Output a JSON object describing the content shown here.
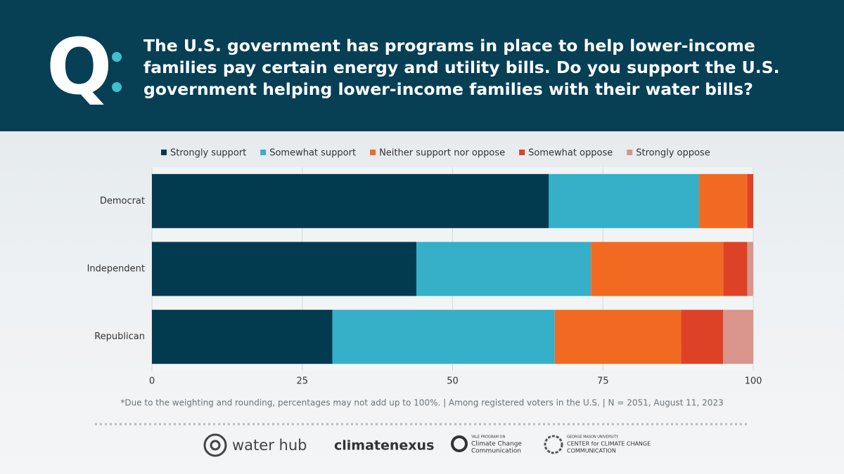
{
  "q_mark": "Q",
  "logos": [
    "water hub",
    "climatenexus",
    "YALE PROGRAM ON",
    "Climate Change",
    "Communication",
    "GEORGE MASON UNIVERSITY",
    "CENTER for CLIMATE CHANGE",
    "COMMUNICATION"
  ],
  "chart_data": {
    "type": "bar",
    "orientation": "horizontal",
    "stacked": true,
    "title": "The U.S. government has programs in place to help lower-income families pay certain energy and utility bills. Do you support the U.S. government helping lower-income families with their water bills?",
    "footnote": "*Due to the weighting and rounding, percentages may not add up to 100%.  |  Among registered voters in the U.S.  |  N = 2051, August 11, 2023",
    "categories": [
      "Democrat",
      "Independent",
      "Republican"
    ],
    "series": [
      {
        "name": "Strongly support",
        "color": "#023a4f",
        "values": [
          66,
          44,
          30
        ]
      },
      {
        "name": "Somewhat support",
        "color": "#36afc9",
        "values": [
          25,
          29,
          37
        ]
      },
      {
        "name": "Neither support nor oppose",
        "color": "#f26a22",
        "values": [
          8,
          22,
          21
        ]
      },
      {
        "name": "Somewhat oppose",
        "color": "#de4226",
        "values": [
          1,
          4,
          7
        ]
      },
      {
        "name": "Strongly oppose",
        "color": "#d9948c",
        "values": [
          0,
          1,
          5
        ]
      }
    ],
    "xlim": [
      0,
      100
    ],
    "xticks": [
      0,
      25,
      50,
      75,
      100
    ],
    "grid": true,
    "legend": "top"
  }
}
